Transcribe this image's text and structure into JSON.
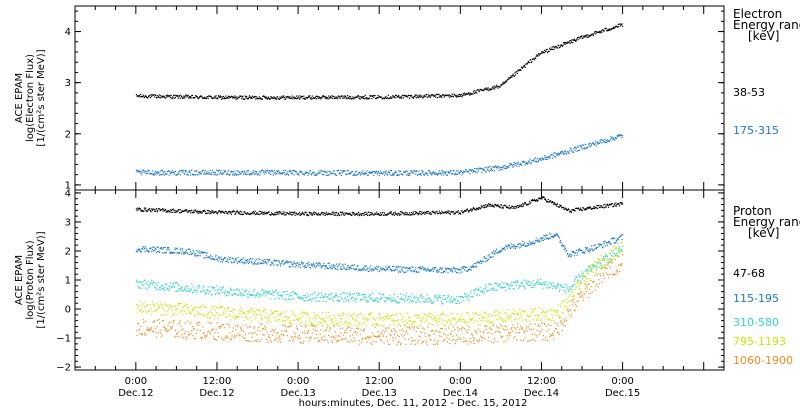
{
  "chart_data": [
    {
      "type": "scatter",
      "panel": "electron",
      "ylabel_lines": [
        "ACE EPAM",
        "log(Electron Flux)",
        "[1/(cm²s ster MeV)]"
      ],
      "ylim": [
        0.9,
        4.5
      ],
      "yticks": [
        1,
        2,
        3,
        4
      ],
      "legend_title": [
        "Electron",
        "Energy ranges",
        "[keV]"
      ],
      "series": [
        {
          "name": "38-53",
          "color": "#000000",
          "points": [
            [
              0,
              2.75
            ],
            [
              12,
              2.72
            ],
            [
              24,
              2.72
            ],
            [
              36,
              2.73
            ],
            [
              48,
              2.76
            ],
            [
              54,
              2.95
            ],
            [
              58,
              3.4
            ],
            [
              60,
              3.6
            ],
            [
              66,
              3.9
            ],
            [
              72,
              4.15
            ]
          ]
        },
        {
          "name": "175-315",
          "color": "#1e78c8",
          "points": [
            [
              0,
              1.25
            ],
            [
              12,
              1.25
            ],
            [
              24,
              1.25
            ],
            [
              36,
              1.24
            ],
            [
              48,
              1.25
            ],
            [
              54,
              1.35
            ],
            [
              60,
              1.52
            ],
            [
              66,
              1.75
            ],
            [
              72,
              1.98
            ]
          ]
        }
      ]
    },
    {
      "type": "scatter",
      "panel": "proton",
      "ylabel_lines": [
        "ACE EPAM",
        "log(Proton Flux)",
        "[1/(cm²s ster MeV)]"
      ],
      "ylim": [
        -2.1,
        4.1
      ],
      "yticks": [
        -2,
        -1,
        0,
        1,
        2,
        3,
        4
      ],
      "legend_title": [
        "Proton",
        "Energy ranges",
        "[keV]"
      ],
      "series": [
        {
          "name": "47-68",
          "color": "#000000",
          "points": [
            [
              0,
              3.45
            ],
            [
              12,
              3.35
            ],
            [
              24,
              3.3
            ],
            [
              36,
              3.3
            ],
            [
              48,
              3.35
            ],
            [
              52,
              3.6
            ],
            [
              56,
              3.5
            ],
            [
              60,
              3.85
            ],
            [
              64,
              3.4
            ],
            [
              72,
              3.65
            ]
          ]
        },
        {
          "name": "115-195",
          "color": "#1e78c8",
          "points": [
            [
              0,
              2.1
            ],
            [
              8,
              2.0
            ],
            [
              12,
              1.75
            ],
            [
              24,
              1.55
            ],
            [
              36,
              1.4
            ],
            [
              48,
              1.35
            ],
            [
              50,
              1.5
            ],
            [
              54,
              2.1
            ],
            [
              58,
              2.3
            ],
            [
              62,
              2.6
            ],
            [
              64,
              1.9
            ],
            [
              68,
              2.15
            ],
            [
              72,
              2.5
            ]
          ]
        },
        {
          "name": "310-580",
          "color": "#32d2c8",
          "points": [
            [
              0,
              0.9
            ],
            [
              12,
              0.65
            ],
            [
              24,
              0.45
            ],
            [
              36,
              0.4
            ],
            [
              48,
              0.35
            ],
            [
              52,
              0.75
            ],
            [
              56,
              0.85
            ],
            [
              60,
              0.9
            ],
            [
              64,
              0.7
            ],
            [
              66,
              1.2
            ],
            [
              72,
              2.1
            ]
          ]
        },
        {
          "name": "795-1193",
          "color": "#c8e600",
          "points": [
            [
              0,
              0.1
            ],
            [
              12,
              -0.1
            ],
            [
              24,
              -0.3
            ],
            [
              36,
              -0.35
            ],
            [
              48,
              -0.35
            ],
            [
              56,
              -0.2
            ],
            [
              62,
              -0.15
            ],
            [
              64,
              0.3
            ],
            [
              66,
              1.0
            ],
            [
              68,
              1.5
            ],
            [
              72,
              2.2
            ]
          ]
        },
        {
          "name": "1060-1900",
          "color": "#f08c1e",
          "points": [
            [
              0,
              -0.6
            ],
            [
              12,
              -0.75
            ],
            [
              24,
              -0.85
            ],
            [
              36,
              -0.9
            ],
            [
              48,
              -0.9
            ],
            [
              56,
              -0.8
            ],
            [
              62,
              -0.75
            ],
            [
              64,
              -0.1
            ],
            [
              66,
              0.5
            ],
            [
              68,
              1.0
            ],
            [
              72,
              1.7
            ]
          ]
        }
      ]
    }
  ],
  "x_axis": {
    "xlim": [
      -9,
      87
    ],
    "ticks": [
      {
        "h": 0,
        "time": "0:00",
        "date": "Dec.12"
      },
      {
        "h": 12,
        "time": "12:00",
        "date": "Dec.12"
      },
      {
        "h": 24,
        "time": "0:00",
        "date": "Dec.13"
      },
      {
        "h": 36,
        "time": "12:00",
        "date": "Dec.13"
      },
      {
        "h": 48,
        "time": "0:00",
        "date": "Dec.14"
      },
      {
        "h": 60,
        "time": "12:00",
        "date": "Dec.14"
      },
      {
        "h": 72,
        "time": "0:00",
        "date": "Dec.15"
      }
    ],
    "xlabel": "hours:minutes, Dec. 11, 2012 - Dec. 15, 2012"
  },
  "colors": {
    "axis": "#000000",
    "background": "#ffffff"
  }
}
